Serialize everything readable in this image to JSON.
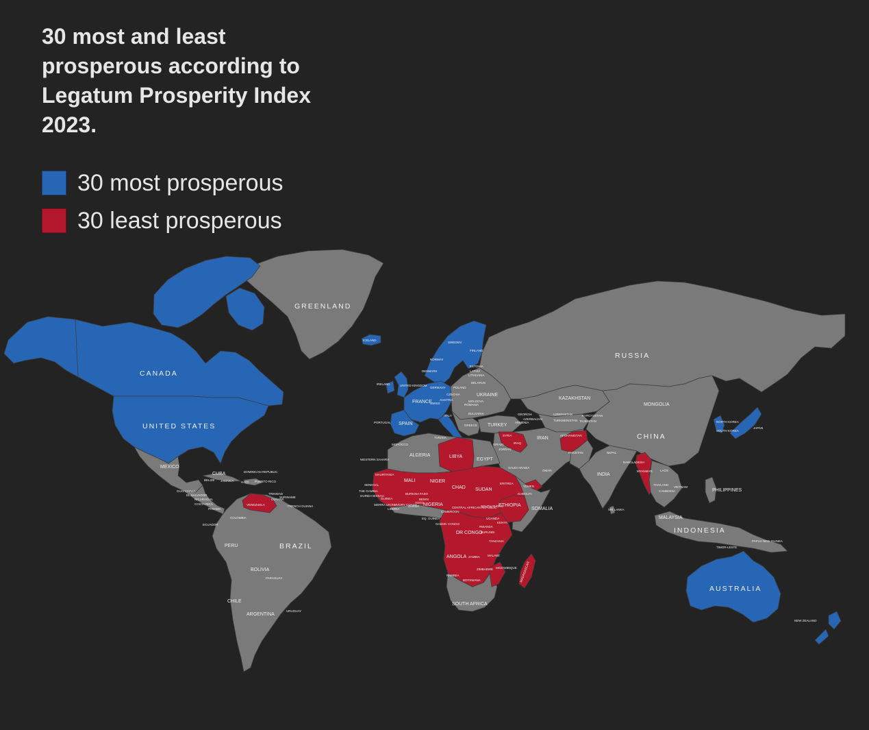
{
  "title": "30 most and least\nprosperous according to\nLegatum Prosperity Index\n2023.",
  "legend": [
    {
      "label": "30 most prosperous",
      "color": "#2765b5"
    },
    {
      "label": "30 least prosperous",
      "color": "#b3182d"
    }
  ],
  "colors": {
    "background": "#232323",
    "land": "#7a7a7a",
    "border": "#3d3d3d",
    "text": "#f0f0f0"
  },
  "labels": {
    "greenland": "GREENLAND",
    "iceland": "ICELAND",
    "canada": "CANADA",
    "united_states": "UNITED STATES",
    "mexico": "MEXICO",
    "cuba": "CUBA",
    "guatemala": "GUATEMALA",
    "el_salvador": "EL SALVADOR",
    "nicaragua": "NICARAGUA",
    "costa_rica": "COSTA RICA",
    "panama": "PANAMA",
    "belize": "BELIZE",
    "jamaica": "JAMAICA",
    "haiti": "HAITI",
    "dominican_republic": "DOMINICAN REPUBLIC",
    "puerto_rico": "PUERTO RICO",
    "trinidad": "TRINIDAD",
    "guyana": "GUYANA",
    "suriname": "SURINAME",
    "french_guiana": "FRENCH GUIANA",
    "colombia": "COLOMBIA",
    "venezuela": "VENEZUELA",
    "ecuador": "ECUADOR",
    "peru": "PERU",
    "brazil": "BRAZIL",
    "bolivia": "BOLIVIA",
    "paraguay": "PARAGUAY",
    "chile": "CHILE",
    "argentina": "ARGENTINA",
    "uruguay": "URUGUAY",
    "norway": "NORWAY",
    "sweden": "SWEDEN",
    "finland": "FINLAND",
    "denmark": "DENMARK",
    "ireland": "IRELAND",
    "united_kingdom": "UNITED KINGDOM",
    "germany": "GERMANY",
    "poland": "POLAND",
    "belarus": "BELARUS",
    "ukraine": "UKRAINE",
    "moldova": "MOLDOVA",
    "romania": "ROMANIA",
    "france": "FRANCE",
    "spain": "SPAIN",
    "portugal": "PORTUGAL",
    "italy": "ITALY",
    "swiss": "SWISS",
    "austria": "AUSTRIA",
    "czechia": "CZECHIA",
    "bulgaria": "BULGARIA",
    "greece": "GREECE",
    "turkey": "TURKEY",
    "lithuania": "LITHUANIA",
    "latvia": "LATVIA",
    "estonia": "ESTONIA",
    "russia": "RUSSIA",
    "kazakhstan": "KAZAKHSTAN",
    "mongolia": "MONGOLIA",
    "china": "CHINA",
    "japan": "JAPAN",
    "north_korea": "NORTH KOREA",
    "south_korea": "SOUTH KOREA",
    "uzbekistan": "UZBEKISTAN",
    "turkmenistan": "TURKMENISTAN",
    "kyrgyzstan": "KYRGYZSTAN",
    "tajikistan": "TAJIKISTAN",
    "georgia": "GEORGIA",
    "azerbaijan": "AZERBAIJAN",
    "armenia": "ARMENIA",
    "syria": "SYRIA",
    "iraq": "IRAQ",
    "iran": "IRAN",
    "afghanistan": "AFGHANISTAN",
    "pakistan": "PAKISTAN",
    "india": "INDIA",
    "nepal": "NEPAL",
    "bangladesh": "BANGLADESH",
    "myanmar": "MYANMAR",
    "thailand": "THAILAND",
    "laos": "LAOS",
    "vietnam": "VIETNAM",
    "cambodia": "CAMBODIA",
    "sri_lanka": "SRI LANKA",
    "philippines": "PHILIPPINES",
    "malaysia": "MALAYSIA",
    "indonesia": "INDONESIA",
    "papua_new_guinea": "PAPUA NEW GUINEA",
    "timor_leste": "TIMOR-LESTE",
    "saudi_arabia": "SAUDI ARABIA",
    "yemen": "YEMEN",
    "oman": "OMAN",
    "israel": "ISRAEL",
    "jordan": "JORDAN",
    "morocco": "MOROCCO",
    "algeria": "ALGERIA",
    "tunisia": "TUNISIA",
    "libya": "LIBYA",
    "egypt": "EGYPT",
    "western_sahara": "WESTERN SAHARA",
    "mauritania": "MAURITANIA",
    "mali": "MALI",
    "niger": "NIGER",
    "chad": "CHAD",
    "sudan": "SUDAN",
    "eritrea": "ERITREA",
    "djibouti": "DJIBOUTI",
    "ethiopia": "ETHIOPIA",
    "somalia": "SOMALIA",
    "senegal": "SENEGAL",
    "the_gambia": "THE GAMBIA",
    "guinea_bissau": "GUINEA BISSAU",
    "guinea": "GUINEA",
    "sierra_leone": "SIERRA LEONE",
    "liberia": "LIBERIA",
    "ivory_coast": "IVORY COAST",
    "burkina_faso": "BURKINA FASO",
    "ghana": "GHANA",
    "togo": "TOGO",
    "benin": "BENIN",
    "nigeria": "NIGERIA",
    "cameroon": "CAMEROON",
    "central_african_republic": "CENTRAL AFRICAN REPUBLIC",
    "south_sudan": "SOUTH SUDAN",
    "eq_guinea": "EQ. GUINEA",
    "gabon": "GABON",
    "congo": "CONGO",
    "dr_congo": "DR CONGO",
    "uganda": "UGANDA",
    "kenya": "KENYA",
    "rwanda": "RWANDA",
    "burundi": "BURUNDI",
    "tanzania": "TANZANIA",
    "angola": "ANGOLA",
    "zambia": "ZAMBIA",
    "malawi": "MALAWI",
    "mozambique": "MOZAMBIQUE",
    "zimbabwe": "ZIMBABWE",
    "namibia": "NAMIBIA",
    "botswana": "BOTSWANA",
    "south_africa": "SOUTH AFRICA",
    "madagascar": "MADAGASCAR",
    "australia": "AUSTRALIA",
    "new_zealand": "NEW ZEALAND"
  }
}
